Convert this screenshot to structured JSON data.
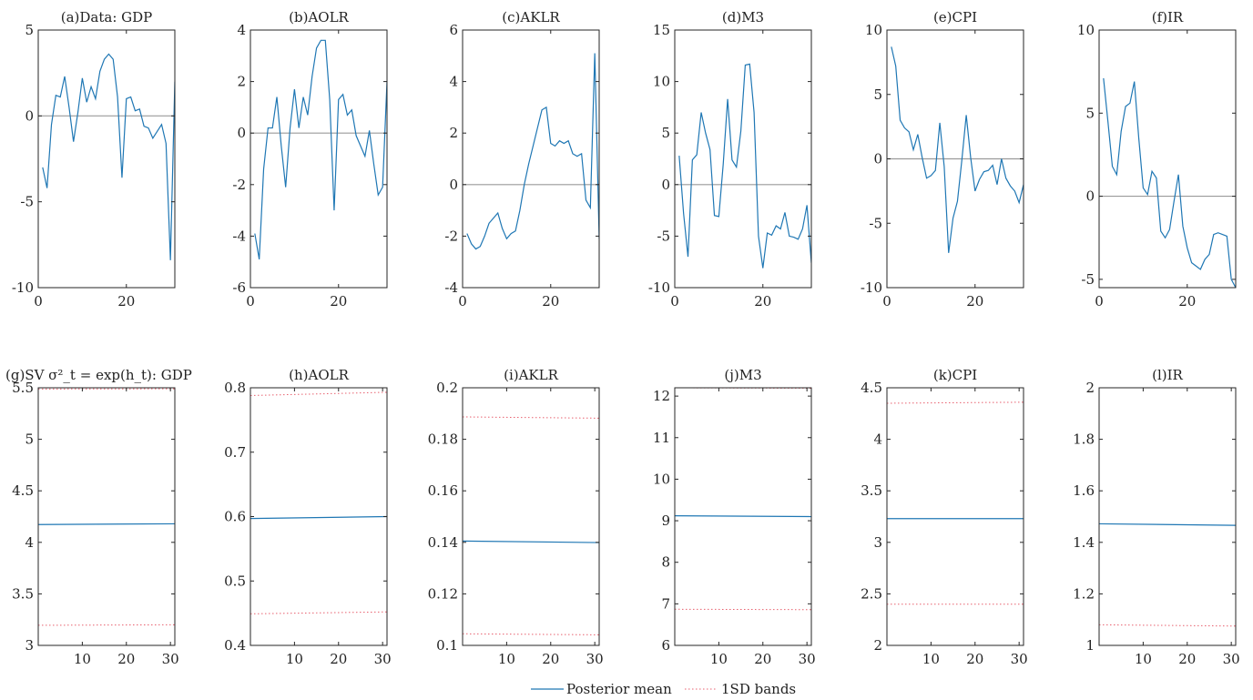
{
  "legend": {
    "mean_label": "Posterior mean",
    "bands_label": "1SD bands",
    "mean_color": "#1f77b4",
    "bands_color": "#e8606f"
  },
  "chart_data": [
    {
      "id": "a",
      "type": "line",
      "title": "(a)Data: GDP",
      "xlim": [
        0,
        31
      ],
      "ylim": [
        -10,
        5
      ],
      "xticks": [
        0,
        20
      ],
      "yticks": [
        5,
        0,
        -5,
        -10
      ],
      "zero_line": true,
      "series": [
        {
          "x": [
            1,
            2,
            3,
            4,
            5,
            6,
            7,
            8,
            9,
            10,
            11,
            12,
            13,
            14,
            15,
            16,
            17,
            18,
            19,
            20,
            21,
            22,
            23,
            24,
            25,
            26,
            27,
            28,
            29,
            30,
            31
          ],
          "y": [
            -3.0,
            -4.2,
            -0.5,
            1.2,
            1.1,
            2.3,
            0.5,
            -1.5,
            0.2,
            2.2,
            0.8,
            1.7,
            1.0,
            2.6,
            3.3,
            3.6,
            3.3,
            1.1,
            -3.6,
            1.0,
            1.1,
            0.3,
            0.4,
            -0.6,
            -0.7,
            -1.3,
            -0.9,
            -0.5,
            -1.6,
            -8.4,
            2.0
          ]
        }
      ]
    },
    {
      "id": "b",
      "type": "line",
      "title": "(b)AOLR",
      "xlim": [
        0,
        31
      ],
      "ylim": [
        -6,
        4
      ],
      "xticks": [
        0,
        20
      ],
      "yticks": [
        4,
        2,
        0,
        -2,
        -4,
        -6
      ],
      "zero_line": true,
      "series": [
        {
          "x": [
            1,
            2,
            3,
            4,
            5,
            6,
            7,
            8,
            9,
            10,
            11,
            12,
            13,
            14,
            15,
            16,
            17,
            18,
            19,
            20,
            21,
            22,
            23,
            24,
            25,
            26,
            27,
            28,
            29,
            30,
            31
          ],
          "y": [
            -3.9,
            -4.9,
            -1.4,
            0.2,
            0.2,
            1.4,
            -0.5,
            -2.1,
            0.2,
            1.7,
            0.2,
            1.4,
            0.7,
            2.2,
            3.3,
            3.6,
            3.6,
            1.3,
            -3.0,
            1.3,
            1.5,
            0.7,
            0.9,
            -0.1,
            -0.5,
            -0.9,
            0.1,
            -1.2,
            -2.4,
            -2.1,
            2.0
          ]
        }
      ]
    },
    {
      "id": "c",
      "type": "line",
      "title": "(c)AKLR",
      "xlim": [
        0,
        31
      ],
      "ylim": [
        -4,
        6
      ],
      "xticks": [
        0,
        20
      ],
      "yticks": [
        6,
        4,
        2,
        0,
        -2,
        -4
      ],
      "zero_line": true,
      "series": [
        {
          "x": [
            1,
            2,
            3,
            4,
            5,
            6,
            7,
            8,
            9,
            10,
            11,
            12,
            13,
            14,
            15,
            16,
            17,
            18,
            19,
            20,
            21,
            22,
            23,
            24,
            25,
            26,
            27,
            28,
            29,
            30,
            31
          ],
          "y": [
            -1.9,
            -2.3,
            -2.5,
            -2.4,
            -2.0,
            -1.5,
            -1.3,
            -1.1,
            -1.7,
            -2.1,
            -1.9,
            -1.8,
            -1.0,
            0.0,
            0.8,
            1.5,
            2.2,
            2.9,
            3.0,
            1.6,
            1.5,
            1.7,
            1.6,
            1.7,
            1.2,
            1.1,
            1.2,
            -0.6,
            -0.9,
            5.1,
            -2.1
          ]
        }
      ]
    },
    {
      "id": "d",
      "type": "line",
      "title": "(d)M3",
      "xlim": [
        0,
        31
      ],
      "ylim": [
        -10,
        15
      ],
      "xticks": [
        0,
        20
      ],
      "yticks": [
        15,
        10,
        5,
        0,
        -5,
        -10
      ],
      "zero_line": true,
      "series": [
        {
          "x": [
            1,
            2,
            3,
            4,
            5,
            6,
            7,
            8,
            9,
            10,
            11,
            12,
            13,
            14,
            15,
            16,
            17,
            18,
            19,
            20,
            21,
            22,
            23,
            24,
            25,
            26,
            27,
            28,
            29,
            30,
            31
          ],
          "y": [
            2.8,
            -2.8,
            -7.0,
            2.4,
            2.9,
            7.0,
            5.0,
            3.4,
            -3.0,
            -3.1,
            2.0,
            8.3,
            2.4,
            1.7,
            5.2,
            11.6,
            11.7,
            7.0,
            -5.0,
            -8.1,
            -4.7,
            -4.9,
            -4.0,
            -4.3,
            -2.7,
            -5.0,
            -5.1,
            -5.3,
            -4.3,
            -2.0,
            -7.6
          ]
        }
      ]
    },
    {
      "id": "e",
      "type": "line",
      "title": "(e)CPI",
      "xlim": [
        0,
        31
      ],
      "ylim": [
        -10,
        10
      ],
      "xticks": [
        0,
        20
      ],
      "yticks": [
        10,
        5,
        0,
        -5,
        -10
      ],
      "zero_line": true,
      "series": [
        {
          "x": [
            1,
            2,
            3,
            4,
            5,
            6,
            7,
            8,
            9,
            10,
            11,
            12,
            13,
            14,
            15,
            16,
            17,
            18,
            19,
            20,
            21,
            22,
            23,
            24,
            25,
            26,
            27,
            28,
            29,
            30,
            31
          ],
          "y": [
            8.7,
            7.2,
            3.0,
            2.4,
            2.1,
            0.7,
            1.9,
            0.1,
            -1.5,
            -1.3,
            -0.9,
            2.8,
            -0.6,
            -7.3,
            -4.6,
            -3.3,
            -0.1,
            3.4,
            0.1,
            -2.5,
            -1.6,
            -1.0,
            -0.9,
            -0.5,
            -2.0,
            0.0,
            -1.5,
            -2.1,
            -2.5,
            -3.4,
            -2.0
          ]
        }
      ]
    },
    {
      "id": "f",
      "type": "line",
      "title": "(f)IR",
      "xlim": [
        0,
        31
      ],
      "ylim": [
        -5.5,
        10
      ],
      "xticks": [
        0,
        20
      ],
      "yticks": [
        10,
        5,
        0,
        -5
      ],
      "zero_line": true,
      "series": [
        {
          "x": [
            1,
            2,
            3,
            4,
            5,
            6,
            7,
            8,
            9,
            10,
            11,
            12,
            13,
            14,
            15,
            16,
            17,
            18,
            19,
            20,
            21,
            22,
            23,
            24,
            25,
            26,
            27,
            28,
            29,
            30,
            31
          ],
          "y": [
            7.1,
            4.5,
            1.8,
            1.3,
            3.9,
            5.4,
            5.6,
            6.9,
            3.5,
            0.5,
            0.1,
            1.5,
            1.1,
            -2.1,
            -2.5,
            -2.0,
            -0.3,
            1.3,
            -1.8,
            -3.1,
            -4.0,
            -4.2,
            -4.4,
            -3.8,
            -3.5,
            -2.3,
            -2.2,
            -2.3,
            -2.4,
            -5.0,
            -5.5
          ]
        }
      ]
    },
    {
      "id": "g",
      "type": "line",
      "title": "(g)SV  σ²_t = exp(h_t):  GDP",
      "xlim": [
        0,
        31
      ],
      "ylim": [
        3,
        5.5
      ],
      "xticks": [
        10,
        20,
        30
      ],
      "yticks": [
        5.5,
        5,
        4.5,
        4,
        3.5,
        3
      ],
      "zero_line": false,
      "series": [
        {
          "role": "mean",
          "x": [
            0,
            31
          ],
          "y": [
            4.173,
            4.18
          ]
        },
        {
          "role": "upper",
          "x": [
            0,
            31
          ],
          "y": [
            5.488,
            5.49
          ]
        },
        {
          "role": "lower",
          "x": [
            0,
            31
          ],
          "y": [
            3.195,
            3.2
          ]
        }
      ]
    },
    {
      "id": "h",
      "type": "line",
      "title": "(h)AOLR",
      "xlim": [
        0,
        31
      ],
      "ylim": [
        0.4,
        0.8
      ],
      "xticks": [
        10,
        20,
        30
      ],
      "yticks": [
        0.8,
        0.7,
        0.6,
        0.5,
        0.4
      ],
      "zero_line": false,
      "series": [
        {
          "role": "mean",
          "x": [
            0,
            31
          ],
          "y": [
            0.597,
            0.6
          ]
        },
        {
          "role": "upper",
          "x": [
            0,
            31
          ],
          "y": [
            0.788,
            0.793
          ]
        },
        {
          "role": "lower",
          "x": [
            0,
            31
          ],
          "y": [
            0.449,
            0.452
          ]
        }
      ]
    },
    {
      "id": "i",
      "type": "line",
      "title": "(i)AKLR",
      "xlim": [
        0,
        31
      ],
      "ylim": [
        0.1,
        0.2
      ],
      "xticks": [
        10,
        20,
        30
      ],
      "yticks": [
        0.2,
        0.18,
        0.16,
        0.14,
        0.12,
        0.1
      ],
      "zero_line": false,
      "series": [
        {
          "role": "mean",
          "x": [
            0,
            31
          ],
          "y": [
            0.1405,
            0.1399
          ]
        },
        {
          "role": "upper",
          "x": [
            0,
            31
          ],
          "y": [
            0.1887,
            0.1882
          ]
        },
        {
          "role": "lower",
          "x": [
            0,
            31
          ],
          "y": [
            0.1045,
            0.1041
          ]
        }
      ]
    },
    {
      "id": "j",
      "type": "line",
      "title": "(j)M3",
      "xlim": [
        0,
        31
      ],
      "ylim": [
        6,
        12.2
      ],
      "xticks": [
        10,
        20,
        30
      ],
      "yticks": [
        12,
        11,
        10,
        9,
        8,
        7,
        6
      ],
      "zero_line": false,
      "series": [
        {
          "role": "mean",
          "x": [
            0,
            31
          ],
          "y": [
            9.12,
            9.1
          ]
        },
        {
          "role": "upper",
          "x": [
            0,
            31
          ],
          "y": [
            12.2,
            12.19
          ]
        },
        {
          "role": "lower",
          "x": [
            0,
            31
          ],
          "y": [
            6.87,
            6.86
          ]
        }
      ]
    },
    {
      "id": "k",
      "type": "line",
      "title": "(k)CPI",
      "xlim": [
        0,
        31
      ],
      "ylim": [
        2,
        4.5
      ],
      "xticks": [
        10,
        20,
        30
      ],
      "yticks": [
        4.5,
        4,
        3.5,
        3,
        2.5,
        2
      ],
      "zero_line": false,
      "series": [
        {
          "role": "mean",
          "x": [
            0,
            31
          ],
          "y": [
            3.23,
            3.23
          ]
        },
        {
          "role": "upper",
          "x": [
            0,
            31
          ],
          "y": [
            4.35,
            4.36
          ]
        },
        {
          "role": "lower",
          "x": [
            0,
            31
          ],
          "y": [
            2.4,
            2.4
          ]
        }
      ]
    },
    {
      "id": "l",
      "type": "line",
      "title": "(l)IR",
      "xlim": [
        0,
        31
      ],
      "ylim": [
        1,
        2
      ],
      "xticks": [
        10,
        20,
        30
      ],
      "yticks": [
        2,
        1.8,
        1.6,
        1.4,
        1.2,
        1
      ],
      "zero_line": false,
      "series": [
        {
          "role": "mean",
          "x": [
            0,
            31
          ],
          "y": [
            1.472,
            1.466
          ]
        },
        {
          "role": "upper",
          "x": [
            0,
            31
          ],
          "y": [
            2.0,
            2.0
          ]
        },
        {
          "role": "lower",
          "x": [
            0,
            31
          ],
          "y": [
            1.08,
            1.075
          ]
        }
      ]
    }
  ]
}
